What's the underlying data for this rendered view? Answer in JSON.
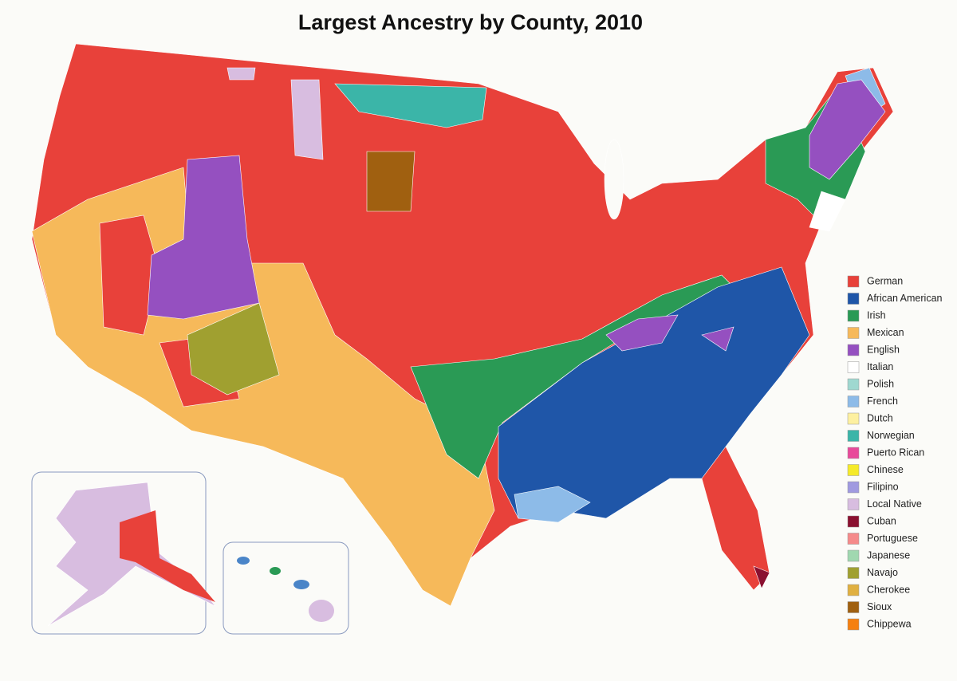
{
  "title": "Largest Ancestry by County, 2010",
  "legend": [
    {
      "label": "German",
      "color": "#e8413a"
    },
    {
      "label": "African American",
      "color": "#1f56a8"
    },
    {
      "label": "Irish",
      "color": "#2a9a55"
    },
    {
      "label": "Mexican",
      "color": "#f6b95a"
    },
    {
      "label": "English",
      "color": "#9550c0"
    },
    {
      "label": "Italian",
      "color": "#ffffff"
    },
    {
      "label": "Polish",
      "color": "#9fd8d0"
    },
    {
      "label": "French",
      "color": "#8dbbe8"
    },
    {
      "label": "Dutch",
      "color": "#fdf0a0"
    },
    {
      "label": "Norwegian",
      "color": "#3bb5a8"
    },
    {
      "label": "Puerto Rican",
      "color": "#e84a9a"
    },
    {
      "label": "Chinese",
      "color": "#f5ea2a"
    },
    {
      "label": "Filipino",
      "color": "#a09ae0"
    },
    {
      "label": "Local Native",
      "color": "#d8bde0"
    },
    {
      "label": "Cuban",
      "color": "#8a1030"
    },
    {
      "label": "Portuguese",
      "color": "#f58a8a"
    },
    {
      "label": "Japanese",
      "color": "#a0d8b0"
    },
    {
      "label": "Navajo",
      "color": "#a0a030"
    },
    {
      "label": "Cherokee",
      "color": "#e0b040"
    },
    {
      "label": "Sioux",
      "color": "#a06010"
    },
    {
      "label": "Chippewa",
      "color": "#f58010"
    }
  ]
}
